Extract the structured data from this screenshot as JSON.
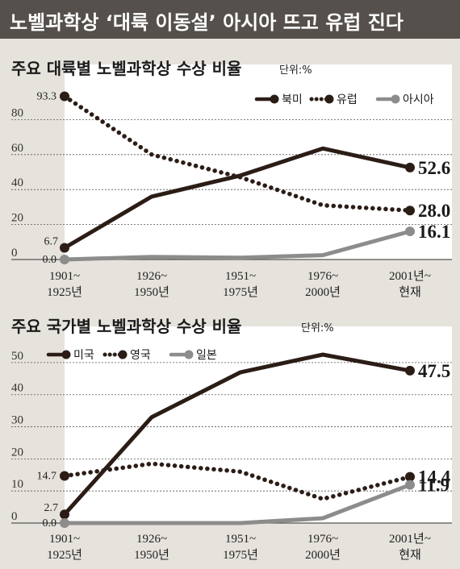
{
  "header": {
    "title": "노벨과학상 ‘대륙 이동설’ 아시아 뜨고 유럽 진다"
  },
  "chart_data": [
    {
      "type": "line",
      "title": "주요 대륙별 노벨과학상 수상 비율",
      "unit": "단위:%",
      "categories": [
        [
          "1901~",
          "1925년"
        ],
        [
          "1926~",
          "1950년"
        ],
        [
          "1951~",
          "1975년"
        ],
        [
          "1976~",
          "2000년"
        ],
        [
          "2001년~",
          "현재"
        ]
      ],
      "yticks": [
        "0",
        "20",
        "40",
        "60",
        "80"
      ],
      "ylim": [
        0,
        100
      ],
      "grid": true,
      "legend_position": "top-right",
      "colors": {
        "dark": "#2b1d16",
        "gray": "#8c8c8c",
        "grid": "#555555"
      },
      "series": [
        {
          "name": "북미",
          "style": "solid",
          "color": "#2b1d16",
          "values": [
            6.7,
            36,
            48,
            63.5,
            52.6
          ],
          "start_label": "6.7",
          "end_label": "52.6"
        },
        {
          "name": "유럽",
          "style": "dotted",
          "color": "#2b1d16",
          "values": [
            93.3,
            60,
            47,
            31,
            28.0
          ],
          "start_label": "93.3",
          "end_label": "28.0"
        },
        {
          "name": "아시아",
          "style": "solid",
          "color": "#8c8c8c",
          "values": [
            0.0,
            1.5,
            1.0,
            2.5,
            16.1
          ],
          "start_label": "0.0",
          "end_label": "16.1"
        }
      ]
    },
    {
      "type": "line",
      "title": "주요 국가별 노벨과학상 수상 비율",
      "unit": "단위:%",
      "categories": [
        [
          "1901~",
          "1925년"
        ],
        [
          "1926~",
          "1950년"
        ],
        [
          "1951~",
          "1975년"
        ],
        [
          "1976~",
          "2000년"
        ],
        [
          "2001년~",
          "현재"
        ]
      ],
      "yticks": [
        "0",
        "10",
        "20",
        "30",
        "40",
        "50"
      ],
      "ylim": [
        0,
        55
      ],
      "grid": true,
      "legend_position": "top-left",
      "colors": {
        "dark": "#2b1d16",
        "gray": "#8c8c8c",
        "grid": "#555555"
      },
      "series": [
        {
          "name": "미국",
          "style": "solid",
          "color": "#2b1d16",
          "values": [
            2.7,
            33,
            47,
            52.5,
            47.5
          ],
          "start_label": "2.7",
          "end_label": "47.5"
        },
        {
          "name": "영국",
          "style": "dotted",
          "color": "#2b1d16",
          "values": [
            14.7,
            18.5,
            16,
            7.5,
            14.4
          ],
          "start_label": "14.7",
          "end_label": "14.4"
        },
        {
          "name": "일본",
          "style": "solid",
          "color": "#8c8c8c",
          "values": [
            0.0,
            0.0,
            0.0,
            1.5,
            11.9
          ],
          "start_label": "0.0",
          "end_label": "11.9"
        }
      ]
    }
  ]
}
